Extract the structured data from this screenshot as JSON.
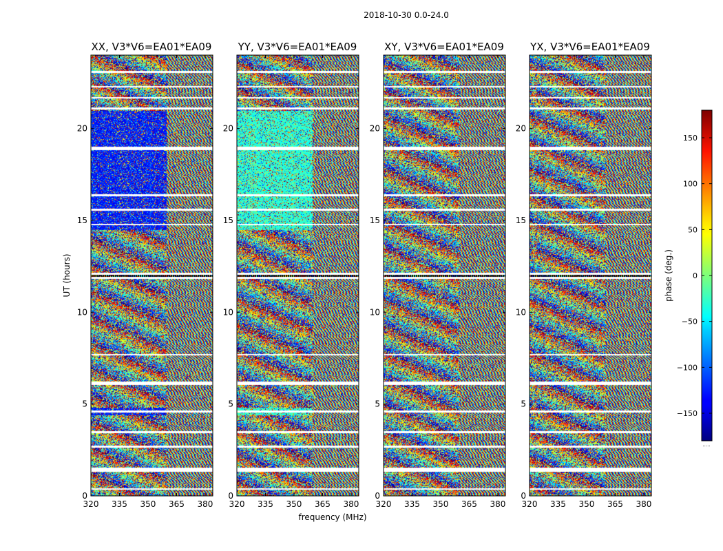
{
  "chart_data": {
    "type": "heatmap",
    "suptitle": "2018-10-30 0.0-24.0",
    "xlabel": "frequency (MHz)",
    "ylabel": "UT (hours)",
    "xlim": [
      320,
      384
    ],
    "ylim": [
      0,
      24
    ],
    "x_ticks": [
      320,
      335,
      350,
      365,
      380
    ],
    "y_ticks": [
      0,
      5,
      10,
      15,
      20
    ],
    "panels": [
      {
        "title": "XX, V3*V6=EA01*EA09",
        "hue_bias": 0.15
      },
      {
        "title": "YY, V3*V6=EA01*EA09",
        "hue_bias": 0.42
      },
      {
        "title": "XY, V3*V6=EA01*EA09",
        "hue_bias": 0.5
      },
      {
        "title": "YX, V3*V6=EA01*EA09",
        "hue_bias": 0.5
      }
    ],
    "flagged_hours": [
      0.4,
      1.4,
      1.5,
      2.7,
      3.5,
      4.6,
      6.1,
      6.2,
      7.7,
      11.9,
      12.1,
      14.8,
      15.6,
      16.4,
      18.9,
      19.0,
      21.1,
      21.7,
      22.3,
      23.1
    ],
    "colorbar": {
      "label": "phase (deg.)",
      "range": [
        -180,
        180
      ],
      "ticks": [
        150,
        100,
        50,
        0,
        -50,
        -100,
        -150
      ],
      "tick_labels": [
        "150",
        "100",
        "50",
        "0",
        "−50",
        "−100",
        "−150"
      ],
      "colormap": "jet",
      "footer": "....."
    }
  }
}
